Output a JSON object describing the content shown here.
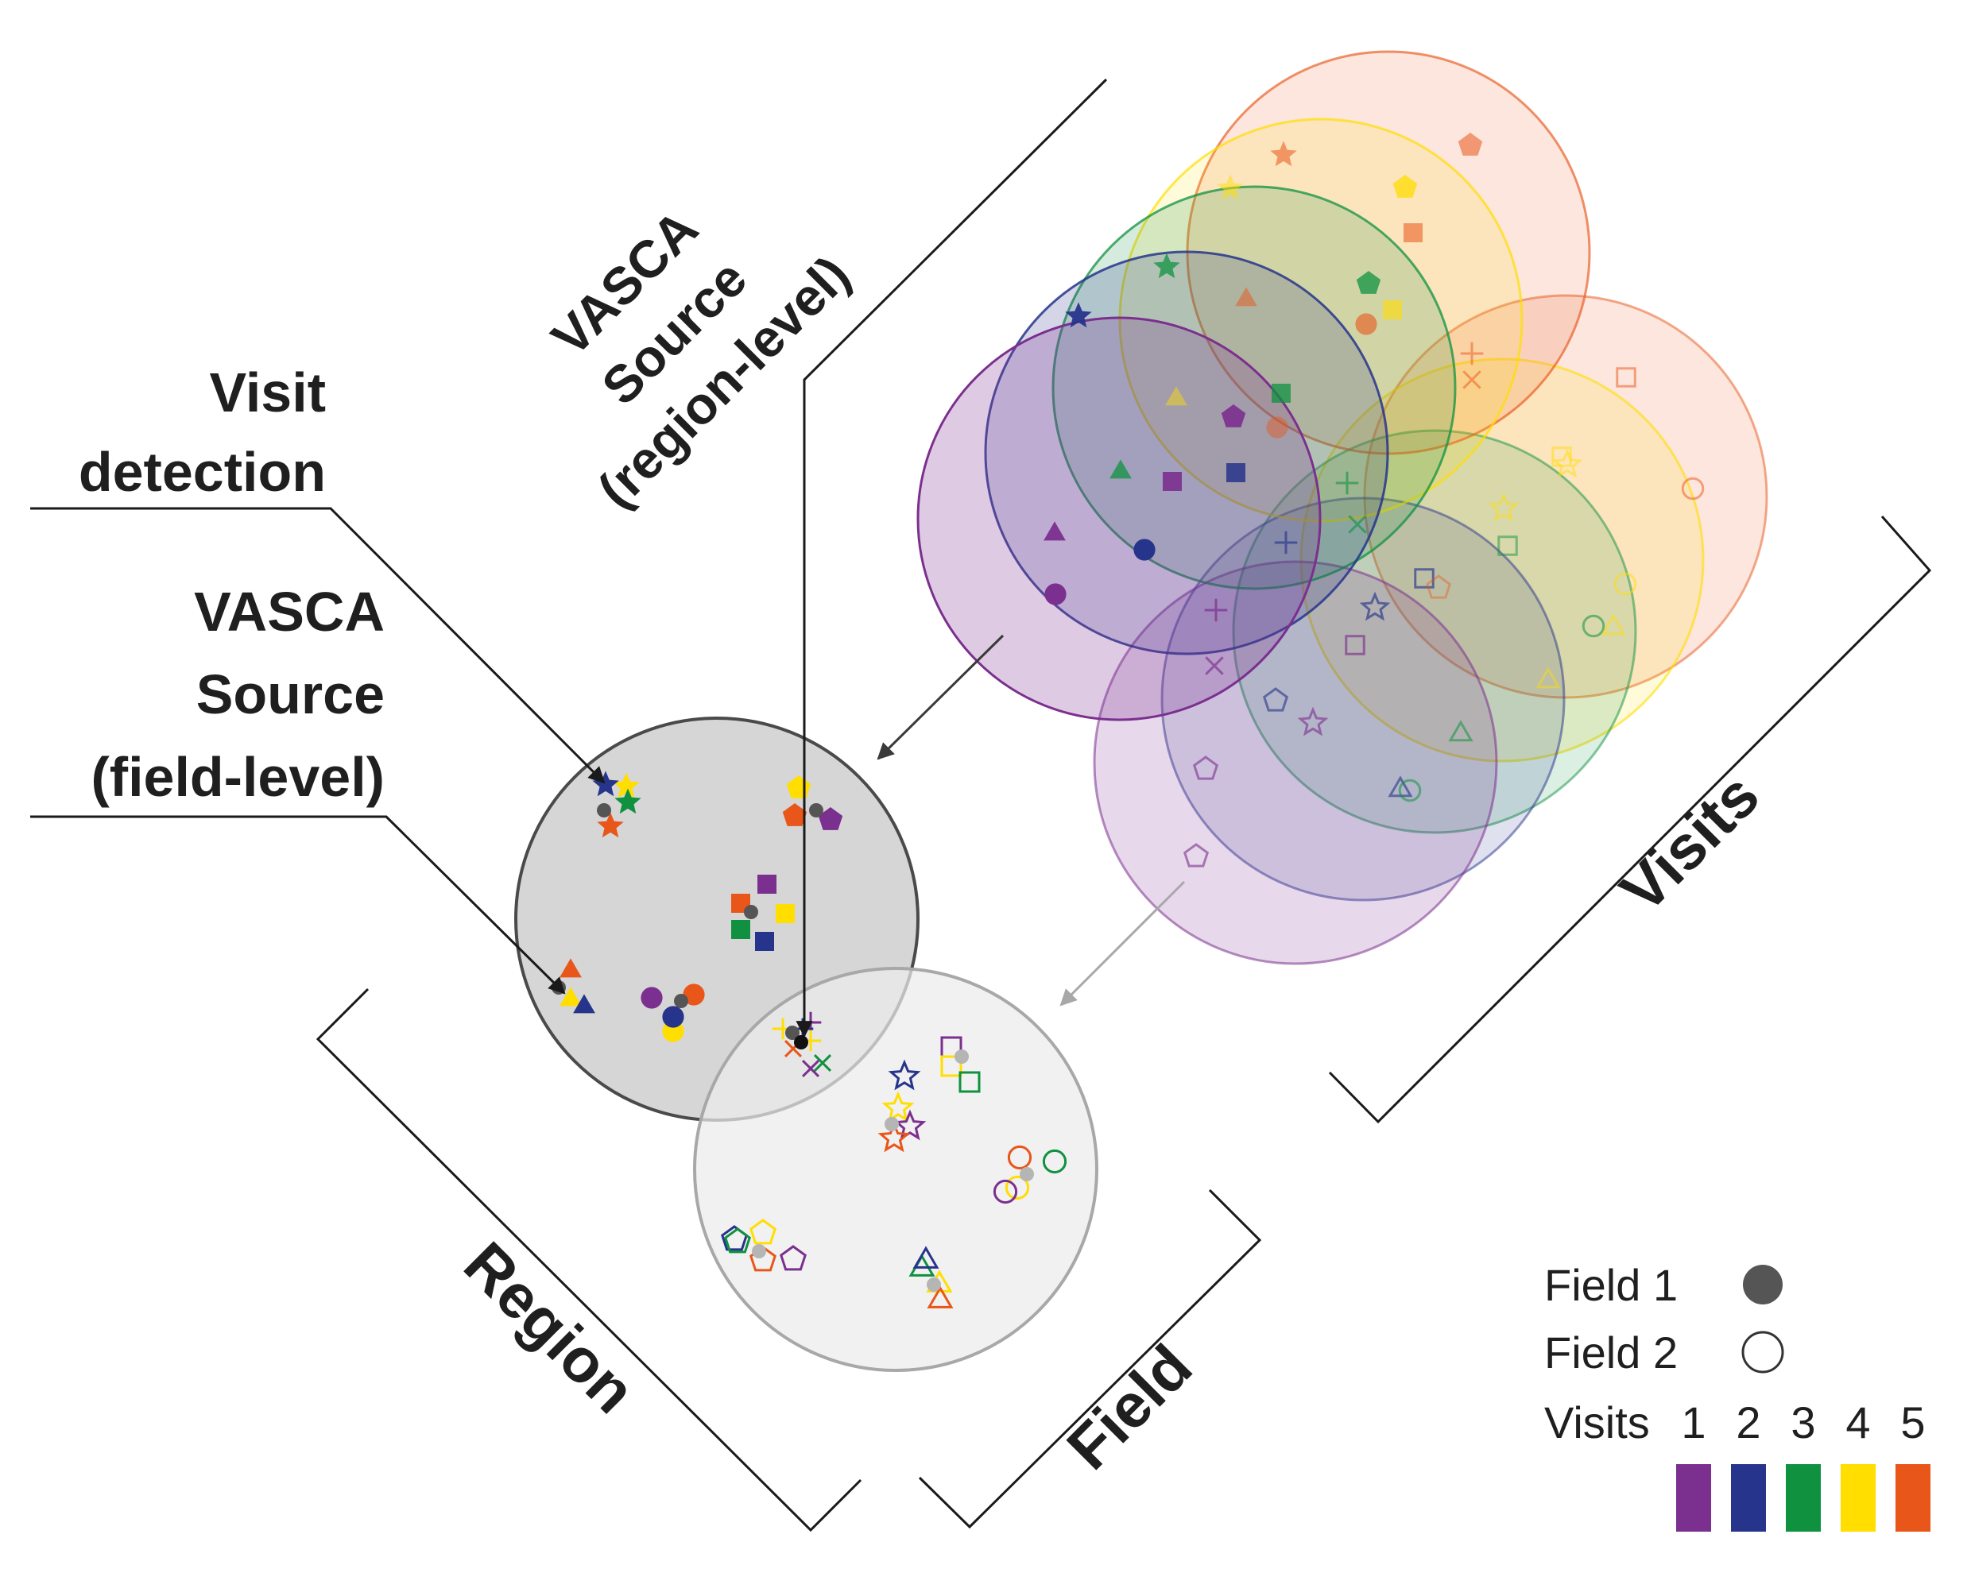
{
  "labels": {
    "source_region": [
      "VASCA",
      "Source",
      "(region-level)"
    ],
    "visit_detection": [
      "Visit",
      "detection"
    ],
    "source_field": [
      "VASCA",
      "Source",
      "(field-level)"
    ],
    "region": "Region",
    "field": "Field",
    "visits": "Visits"
  },
  "legend": {
    "field1": "Field 1",
    "field2": "Field 2",
    "visits_label": "Visits",
    "visit_numbers": [
      "1",
      "2",
      "3",
      "4",
      "5"
    ]
  },
  "colors": {
    "visit1": "#7b2f8e",
    "visit2": "#27348b",
    "visit3": "#0f9140",
    "visit4": "#ffde00",
    "visit5": "#e8561a",
    "region_fill": "#d6d6d6",
    "region_stroke": "#4a4a4a",
    "field_fill": "#ececec",
    "field_stroke": "#a8a8a8",
    "field1_marker": "#555555",
    "field2_marker": "#b5b5b5"
  },
  "symbols": [
    "star",
    "pentagon",
    "square",
    "triangle",
    "circle",
    "plus",
    "cross"
  ]
}
